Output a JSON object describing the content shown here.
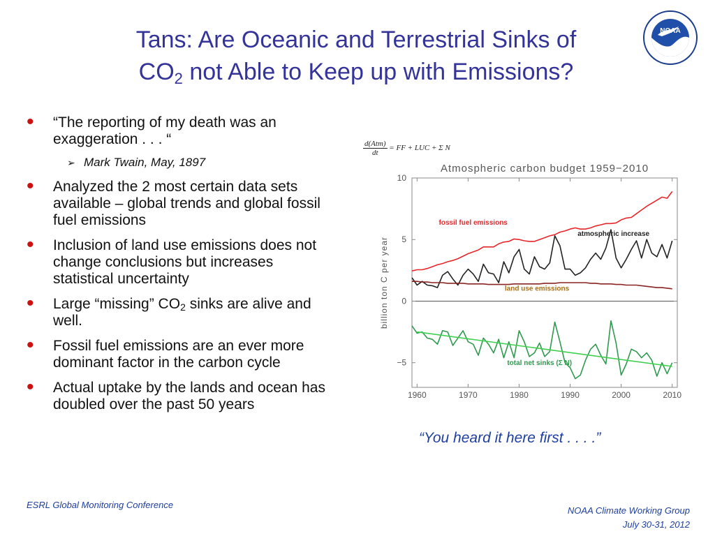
{
  "title": {
    "line1": "Tans: Are Oceanic and Terrestrial Sinks of",
    "co": "CO",
    "sub": "2",
    "line2_rest": " not Able to Keep up with Emissions?"
  },
  "bullets": {
    "b1": "“The reporting of my death was an exaggeration . . . “",
    "b1_sub": "Mark Twain, May, 1897",
    "b2": "Analyzed the 2 most certain data sets available – global trends and global fossil fuel emissions",
    "b3": "Inclusion of land use emissions does not change conclusions but increases statistical uncertainty",
    "b4_pre": "Large “missing” CO",
    "b4_sub": "2",
    "b4_post": " sinks are alive and well.",
    "b5": "Fossil fuel emissions are an ever more dominant factor in the carbon cycle",
    "b6": "Actual uptake by the lands and ocean has doubled over the past 50 years"
  },
  "formula": {
    "numerator": "d(Atm)",
    "denominator": "dt",
    "rhs": "= FF + LUC + Σ N"
  },
  "quote": "“You heard it here first . . . .”",
  "footer": {
    "left": "ESRL Global Monitoring Conference",
    "right_line1": "NOAA Climate Working Group",
    "right_line2": "July 30-31, 2012"
  },
  "chart_data": {
    "type": "line",
    "title": "Atmospheric carbon budget 1959−2010",
    "ylabel": "billion ton C per year",
    "xlabel": "",
    "xlim": [
      1959,
      2011
    ],
    "ylim": [
      -7,
      10
    ],
    "xticks": [
      1960,
      1970,
      1980,
      1990,
      2000,
      2010
    ],
    "yticks": [
      -5,
      0,
      5,
      10
    ],
    "x": [
      1959,
      1960,
      1961,
      1962,
      1963,
      1964,
      1965,
      1966,
      1967,
      1968,
      1969,
      1970,
      1971,
      1972,
      1973,
      1974,
      1975,
      1976,
      1977,
      1978,
      1979,
      1980,
      1981,
      1982,
      1983,
      1984,
      1985,
      1986,
      1987,
      1988,
      1989,
      1990,
      1991,
      1992,
      1993,
      1994,
      1995,
      1996,
      1997,
      1998,
      1999,
      2000,
      2001,
      2002,
      2003,
      2004,
      2005,
      2006,
      2007,
      2008,
      2009,
      2010
    ],
    "series": [
      {
        "name": "fossil fuel emissions",
        "color": "#e8262a",
        "values": [
          2.45,
          2.55,
          2.55,
          2.65,
          2.8,
          2.95,
          3.05,
          3.2,
          3.3,
          3.45,
          3.65,
          3.85,
          4.0,
          4.15,
          4.4,
          4.4,
          4.4,
          4.65,
          4.8,
          4.85,
          5.05,
          5.0,
          4.9,
          4.85,
          4.85,
          5.0,
          5.15,
          5.3,
          5.4,
          5.6,
          5.7,
          5.85,
          5.95,
          5.85,
          5.85,
          5.95,
          6.1,
          6.2,
          6.3,
          6.3,
          6.35,
          6.6,
          6.75,
          6.8,
          7.1,
          7.4,
          7.7,
          7.95,
          8.2,
          8.45,
          8.35,
          8.9
        ]
      },
      {
        "name": "atmospheric increase",
        "color": "#222222",
        "values": [
          1.9,
          1.3,
          1.6,
          1.3,
          1.25,
          1.1,
          2.1,
          2.4,
          1.8,
          1.3,
          2.1,
          2.6,
          2.2,
          1.6,
          3.0,
          2.3,
          2.2,
          1.5,
          3.2,
          2.3,
          3.6,
          4.2,
          2.6,
          2.2,
          3.6,
          2.8,
          2.6,
          3.1,
          5.3,
          4.5,
          2.6,
          2.6,
          2.1,
          2.3,
          2.7,
          3.4,
          3.9,
          3.4,
          4.3,
          5.8,
          3.5,
          2.7,
          3.4,
          4.2,
          4.9,
          3.5,
          5.0,
          3.9,
          3.6,
          4.6,
          3.5,
          4.9
        ]
      },
      {
        "name": "land use emissions",
        "color": "#8b2323",
        "values": [
          1.6,
          1.6,
          1.55,
          1.55,
          1.5,
          1.5,
          1.5,
          1.45,
          1.45,
          1.45,
          1.45,
          1.4,
          1.4,
          1.4,
          1.4,
          1.35,
          1.35,
          1.35,
          1.35,
          1.35,
          1.4,
          1.4,
          1.4,
          1.4,
          1.4,
          1.4,
          1.45,
          1.45,
          1.45,
          1.5,
          1.5,
          1.5,
          1.5,
          1.5,
          1.5,
          1.45,
          1.45,
          1.4,
          1.4,
          1.4,
          1.35,
          1.35,
          1.3,
          1.3,
          1.3,
          1.25,
          1.2,
          1.15,
          1.1,
          1.1,
          1.05,
          1.0
        ]
      },
      {
        "name": "total net sinks (Σ N)",
        "color": "#2e9a4e",
        "values": [
          -2.0,
          -2.6,
          -2.5,
          -3.0,
          -3.1,
          -3.5,
          -2.4,
          -2.5,
          -3.6,
          -3.0,
          -2.4,
          -3.3,
          -3.5,
          -4.4,
          -3.0,
          -3.5,
          -4.2,
          -3.1,
          -4.6,
          -3.3,
          -4.6,
          -2.4,
          -3.3,
          -4.5,
          -4.2,
          -3.4,
          -4.5,
          -4.1,
          -1.7,
          -3.3,
          -5.0,
          -5.4,
          -6.3,
          -6.0,
          -4.8,
          -3.9,
          -3.5,
          -4.4,
          -5.1,
          -1.6,
          -3.4,
          -6.0,
          -5.1,
          -3.9,
          -4.1,
          -4.6,
          -4.2,
          -4.8,
          -6.1,
          -5.0,
          -5.9,
          -5.0
        ]
      }
    ],
    "trend": {
      "name": "total net sinks trend",
      "color": "#3fcf4f",
      "x": [
        1960,
        2010
      ],
      "y": [
        -2.5,
        -5.3
      ]
    },
    "annotations": [
      {
        "text": "fossil fuel emissions",
        "x": 1971,
        "y": 6.2,
        "color": "#e8262a"
      },
      {
        "text": "atmospheric increase",
        "x": 1998.5,
        "y": 5.3,
        "color": "#222222"
      },
      {
        "text": "land use emissions",
        "x": 1983.5,
        "y": 0.85,
        "color": "#a8701a"
      },
      {
        "text": "total net sinks (Σ N)",
        "x": 1984,
        "y": -5.2,
        "color": "#2e9a4e"
      }
    ]
  }
}
